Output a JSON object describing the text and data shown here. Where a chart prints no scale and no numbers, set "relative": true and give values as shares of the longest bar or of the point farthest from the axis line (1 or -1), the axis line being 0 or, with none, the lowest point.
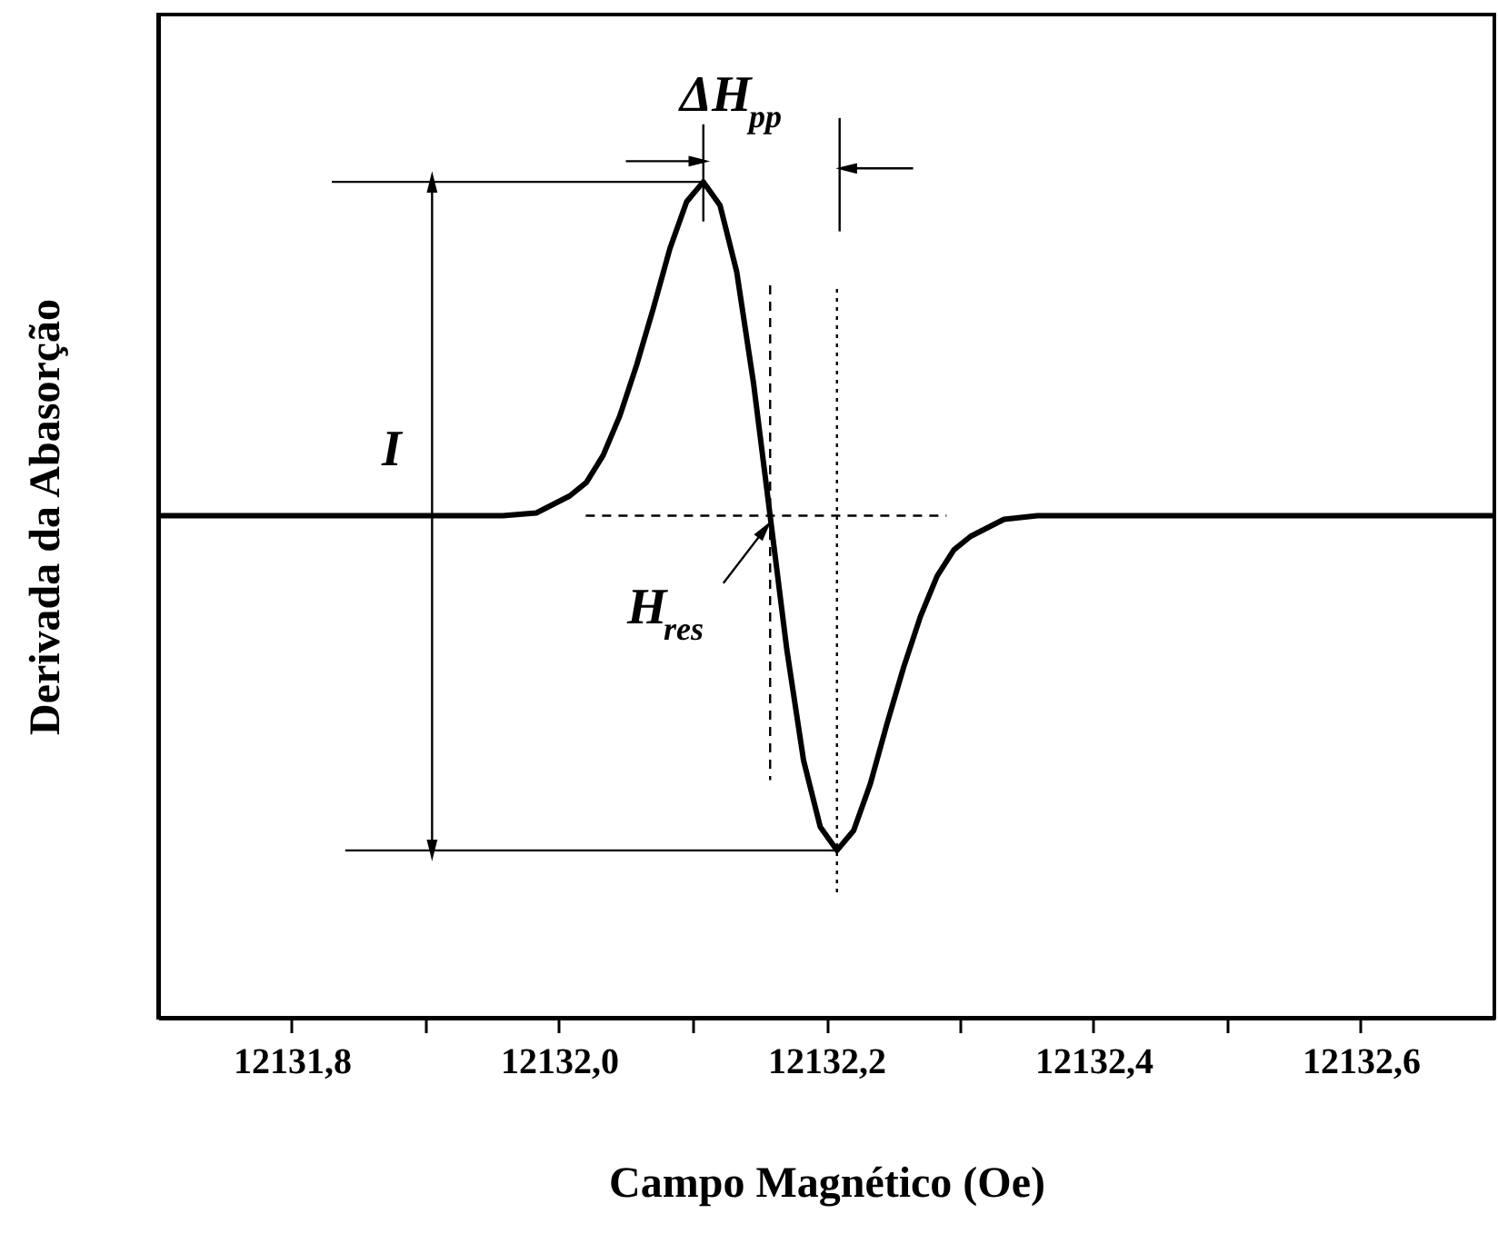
{
  "chart_data": {
    "type": "line",
    "relative": true,
    "xlabel": "Campo Magnético (Oe)",
    "ylabel": "Derivada da Abasorção",
    "xlim": [
      12131.7,
      12132.7
    ],
    "xticks": [
      {
        "value": 12131.8,
        "label": "12131,8"
      },
      {
        "value": 12131.9,
        "label": null
      },
      {
        "value": 12132.0,
        "label": "12132,0"
      },
      {
        "value": 12132.1,
        "label": null
      },
      {
        "value": 12132.2,
        "label": "12132,2"
      },
      {
        "value": 12132.3,
        "label": null
      },
      {
        "value": 12132.4,
        "label": "12132,4"
      },
      {
        "value": 12132.5,
        "label": null
      },
      {
        "value": 12132.6,
        "label": "12132,6"
      }
    ],
    "grid": false,
    "series": [
      {
        "color": "#000000",
        "line_style": "solid",
        "x": [
          12131.7,
          12131.958,
          12131.983,
          12132.008,
          12132.0205,
          12132.033,
          12132.0455,
          12132.058,
          12132.0705,
          12132.083,
          12132.0955,
          12132.108,
          12132.1205,
          12132.133,
          12132.1455,
          12132.158,
          12132.1705,
          12132.183,
          12132.1955,
          12132.208,
          12132.2205,
          12132.233,
          12132.2455,
          12132.258,
          12132.2705,
          12132.283,
          12132.2955,
          12132.308,
          12132.333,
          12132.358,
          12132.7
        ],
        "values": [
          0.558,
          0.558,
          0.561,
          0.58,
          0.595,
          0.625,
          0.669,
          0.725,
          0.788,
          0.855,
          0.907,
          0.929,
          0.903,
          0.829,
          0.706,
          0.558,
          0.409,
          0.286,
          0.212,
          0.186,
          0.208,
          0.26,
          0.327,
          0.39,
          0.446,
          0.491,
          0.52,
          0.535,
          0.554,
          0.558,
          0.558
        ]
      },
      {
        "color": "#000000",
        "line_style": "solid",
        "x": [
          12131.83,
          12132.108
        ],
        "values": [
          0.929,
          0.929
        ]
      },
      {
        "color": "#000000",
        "line_style": "solid",
        "x": [
          12131.84,
          12132.208
        ],
        "values": [
          0.186,
          0.186
        ]
      },
      {
        "color": "#000000",
        "line_style": "dashed",
        "x": [
          12132.02,
          12132.29
        ],
        "values": [
          0.558,
          0.558
        ]
      },
      {
        "color": "#000000",
        "line_style": "dashed",
        "x": [
          12132.158,
          12132.158
        ],
        "values": [
          0.814,
          0.264
        ]
      },
      {
        "color": "#000000",
        "line_style": "dotted",
        "x": [
          12132.208,
          12132.208
        ],
        "values": [
          0.81,
          0.134
        ]
      },
      {
        "color": "#000000",
        "line_style": "solid",
        "x": [
          12132.108,
          12132.108
        ],
        "values": [
          0.993,
          0.885
        ]
      },
      {
        "color": "#000000",
        "line_style": "solid",
        "x": [
          12132.21,
          12132.21
        ],
        "values": [
          1,
          0.874
        ]
      },
      {
        "color": "#000000",
        "line_style": "solid",
        "marker": "triangle",
        "x": [
          12131.905,
          12131.905,
          12131.905
        ],
        "values": [
          0.929,
          0.558,
          0.186
        ]
      },
      {
        "color": "#000000",
        "line_style": "solid",
        "marker": "triangle",
        "x": [
          12132.05,
          12132.105
        ],
        "values": [
          0.952,
          0.952
        ]
      },
      {
        "color": "#000000",
        "line_style": "solid",
        "marker": "triangle",
        "x": [
          12132.265,
          12132.215
        ],
        "values": [
          0.944,
          0.944
        ]
      },
      {
        "color": "#000000",
        "line_style": "solid",
        "marker": "triangle",
        "x": [
          12132.123,
          12132.154
        ],
        "values": [
          0.483,
          0.543
        ]
      }
    ],
    "annotations": [
      "ΔH$_{pp}$",
      "H$_{res}$",
      "I"
    ]
  }
}
